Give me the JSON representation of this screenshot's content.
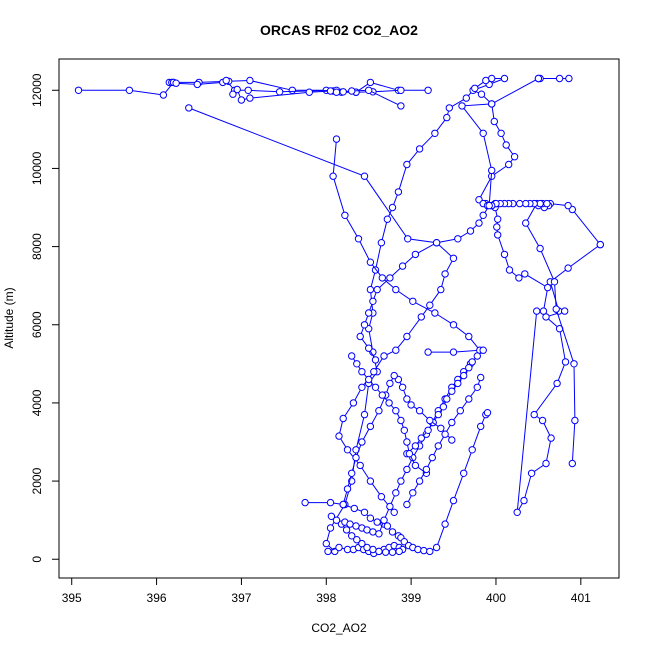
{
  "chart_data": {
    "type": "line",
    "title": "ORCAS RF02 CO2_AO2",
    "xlabel": "CO2_AO2",
    "ylabel": "Altitude (m)",
    "xlim": [
      394.85,
      401.45
    ],
    "ylim": [
      -480,
      12800
    ],
    "xticks": [
      395,
      396,
      397,
      398,
      399,
      400,
      401
    ],
    "yticks": [
      0,
      2000,
      4000,
      6000,
      8000,
      10000,
      12000
    ],
    "grid": false,
    "color": "#0000ff",
    "marker": "open-circle",
    "series": [
      {
        "x": [
          401.23,
          400.85,
          400.64,
          400.74,
          400.81,
          400.59,
          400.75,
          400.82,
          400.72,
          400.45,
          400.55,
          400.65,
          400.59,
          400.42,
          400.33,
          400.25,
          400.48,
          400.56,
          400.61,
          400.34,
          400.27,
          400.16,
          400.1,
          400.02,
          400.01,
          400.02,
          399.99,
          399.95,
          399.99,
          399.88,
          399.8,
          399.95,
          400.15,
          400.22,
          400.12,
          400.06,
          399.98,
          399.95,
          399.83,
          399.73,
          399.92,
          400.1,
          399.95,
          399.88,
          399.75,
          399.65,
          399.45,
          399.42,
          399.28,
          399.1,
          398.95,
          398.85,
          398.78,
          398.72,
          398.65,
          398.58,
          398.52,
          398.55,
          398.5,
          398.55,
          398.6,
          398.5,
          398.45,
          398.35,
          398.3,
          398.22,
          398.05,
          398.0,
          398.1
        ],
        "y": [
          8050,
          7450,
          7100,
          6350,
          6350,
          6200,
          5900,
          5050,
          4500,
          3700,
          3550,
          3100,
          2450,
          2200,
          1500,
          1200,
          6350,
          6350,
          6950,
          7300,
          7200,
          7400,
          7800,
          8300,
          8500,
          8700,
          9000,
          9050,
          9100,
          9100,
          9200,
          9800,
          10100,
          10300,
          10600,
          10900,
          11200,
          11650,
          11900,
          12000,
          12150,
          12300,
          12300,
          12250,
          12050,
          11800,
          11550,
          11300,
          10900,
          10500,
          10100,
          9400,
          9000,
          8700,
          8100,
          7400,
          6900,
          6300,
          5900,
          5300,
          4800,
          4500,
          3700,
          2800,
          2000,
          1400,
          800,
          400,
          200
        ]
      },
      {
        "x": [
          401.23,
          400.9,
          400.85,
          400.64,
          400.62,
          400.57,
          400.48,
          400.35,
          400.52,
          400.69,
          400.71,
          400.92,
          400.93,
          400.9
        ],
        "y": [
          8050,
          8950,
          9050,
          9100,
          9050,
          9000,
          9100,
          8600,
          7950,
          7100,
          6400,
          5000,
          3550,
          2450
        ]
      },
      {
        "x": [
          400.5,
          400.55,
          400.6,
          400.52,
          400.45,
          400.4,
          400.35,
          400.28,
          400.2,
          400.15,
          400.1,
          400.05,
          400.0,
          399.95,
          399.85,
          399.9
        ],
        "y": [
          9050,
          9100,
          9100,
          9100,
          9100,
          9100,
          9100,
          9100,
          9100,
          9100,
          9100,
          9100,
          9100,
          9050,
          9100,
          9050
        ]
      },
      {
        "x": [
          400.5,
          400.86,
          400.75,
          400.52,
          400.5,
          399.95,
          399.6,
          399.85,
          399.95,
          399.92,
          399.85,
          399.8,
          399.7,
          399.55,
          399.3,
          399.05,
          398.9,
          398.75,
          398.6,
          398.55,
          398.5,
          398.45,
          398.4,
          398.5,
          398.58
        ],
        "y": [
          12300,
          12300,
          12300,
          12300,
          12300,
          11650,
          11600,
          10900,
          9950,
          9050,
          8800,
          8600,
          8400,
          8200,
          8100,
          7800,
          7500,
          7200,
          6900,
          6600,
          6300,
          6000,
          5700,
          5400,
          5100
        ]
      },
      {
        "x": [
          398.12,
          398.08,
          398.22,
          398.38,
          398.52,
          398.66,
          398.82,
          399.02,
          399.28,
          399.5,
          399.68,
          399.81,
          399.5,
          399.2
        ],
        "y": [
          10750,
          9800,
          8800,
          8200,
          7600,
          7200,
          6900,
          6600,
          6300,
          6000,
          5700,
          5350,
          5300,
          5300
        ]
      },
      {
        "x": [
          396.38,
          398.45,
          398.96,
          399.3,
          399.5,
          399.4,
          399.35,
          399.22,
          399.12,
          398.95,
          398.82,
          398.68,
          398.56,
          398.42,
          398.32,
          398.2,
          398.15,
          398.25,
          398.4,
          398.52,
          398.65,
          398.8
        ],
        "y": [
          11550,
          9800,
          8200,
          8100,
          7700,
          7300,
          6900,
          6500,
          6200,
          5700,
          5350,
          5200,
          4800,
          4400,
          4000,
          3600,
          3150,
          2800,
          2400,
          2000,
          1600,
          1200
        ]
      },
      {
        "x": [
          395.08,
          395.68,
          396.08,
          396.2,
          396.5,
          396.85,
          397.1,
          397.6,
          398.0,
          398.08,
          398.18,
          398.35,
          398.52,
          398.85,
          399.2
        ],
        "y": [
          12000,
          12000,
          11880,
          12200,
          12200,
          12230,
          12250,
          12000,
          12000,
          11980,
          11950,
          11950,
          12200,
          12000,
          12000
        ]
      },
      {
        "x": [
          396.15,
          396.18,
          396.2,
          396.23,
          396.48,
          396.78,
          396.82,
          396.92,
          397.08,
          397.45,
          398.12,
          398.35,
          398.55,
          398.88
        ],
        "y": [
          12200,
          12200,
          12200,
          12180,
          12150,
          12200,
          12250,
          12000,
          12000,
          11960,
          12000,
          11950,
          11960,
          12000
        ]
      },
      {
        "x": [
          396.9,
          396.95,
          397.0,
          397.1,
          397.8,
          398.05,
          398.12,
          398.2,
          398.3,
          398.5,
          398.88
        ],
        "y": [
          11900,
          12020,
          11750,
          11800,
          11950,
          11980,
          11950,
          11960,
          11980,
          12000,
          11600
        ]
      },
      {
        "x": [
          397.75,
          398.05,
          398.2,
          398.33,
          398.45,
          398.52,
          398.6,
          398.68,
          398.72,
          398.78,
          398.85,
          398.88,
          398.92,
          398.97,
          399.02,
          399.08,
          399.15,
          399.22,
          399.3,
          399.4,
          399.5,
          399.62,
          399.72,
          399.82,
          399.88,
          399.9
        ],
        "y": [
          1450,
          1450,
          1400,
          1300,
          1200,
          1050,
          950,
          900,
          850,
          700,
          600,
          550,
          450,
          350,
          300,
          250,
          220,
          200,
          300,
          900,
          1500,
          2200,
          2800,
          3400,
          3700,
          3750
        ]
      },
      {
        "x": [
          398.02,
          398.15,
          398.25,
          398.32,
          398.38,
          398.44,
          398.5,
          398.56,
          398.62,
          398.68,
          398.74,
          398.8,
          398.86,
          398.9,
          398.86,
          398.78,
          398.7,
          398.62,
          398.55,
          398.48,
          398.42,
          398.36,
          398.3,
          398.24,
          398.18,
          398.12,
          398.06
        ],
        "y": [
          200,
          300,
          250,
          250,
          300,
          250,
          200,
          150,
          200,
          250,
          300,
          350,
          300,
          250,
          200,
          180,
          180,
          200,
          250,
          300,
          400,
          500,
          600,
          750,
          900,
          1000,
          1100
        ]
      },
      {
        "x": [
          398.22,
          398.28,
          398.35,
          398.42,
          398.48,
          398.55,
          398.62,
          398.68,
          398.75,
          398.82,
          398.88,
          398.95,
          399.02,
          399.1,
          399.18,
          399.25,
          399.32,
          399.4,
          399.48,
          399.55,
          399.62,
          399.7,
          399.78,
          399.85
        ],
        "y": [
          950,
          900,
          850,
          800,
          750,
          700,
          650,
          1000,
          1350,
          1700,
          2000,
          2300,
          2600,
          2900,
          3200,
          3500,
          3800,
          4100,
          4400,
          4600,
          4800,
          5000,
          5200,
          5350
        ]
      },
      {
        "x": [
          398.95,
          399.05,
          399.12,
          399.2,
          399.26,
          399.32,
          399.38,
          399.42,
          399.48,
          399.55,
          399.62,
          399.68,
          399.72
        ],
        "y": [
          2700,
          2900,
          3100,
          3300,
          3500,
          3700,
          3900,
          4100,
          4300,
          4500,
          4700,
          4900,
          5050
        ]
      },
      {
        "x": [
          399.48,
          399.35,
          399.22,
          399.1,
          399.0,
          398.95,
          398.9,
          398.85,
          398.8,
          398.75,
          398.7,
          398.62,
          398.52,
          398.42,
          398.35,
          398.3,
          398.25,
          398.2
        ],
        "y": [
          3050,
          3350,
          3550,
          3800,
          3950,
          4100,
          4400,
          4600,
          4700,
          4500,
          4200,
          3800,
          3400,
          3000,
          2600,
          2200,
          1800,
          1400
        ]
      },
      {
        "x": [
          399.18,
          399.05,
          398.98,
          398.95,
          398.92,
          398.88,
          398.82,
          398.74,
          398.66,
          398.58,
          398.5,
          398.42,
          398.36,
          398.3
        ],
        "y": [
          2200,
          2400,
          2700,
          3000,
          3300,
          3550,
          3800,
          4000,
          4200,
          4400,
          4600,
          4800,
          5000,
          5200
        ]
      },
      {
        "x": [
          398.95,
          399.02,
          399.1,
          399.18,
          399.25,
          399.32,
          399.4,
          399.48,
          399.58,
          399.68,
          399.78,
          399.82
        ],
        "y": [
          1400,
          1700,
          2000,
          2300,
          2600,
          2900,
          3200,
          3500,
          3800,
          4100,
          4400,
          4650
        ]
      }
    ]
  }
}
